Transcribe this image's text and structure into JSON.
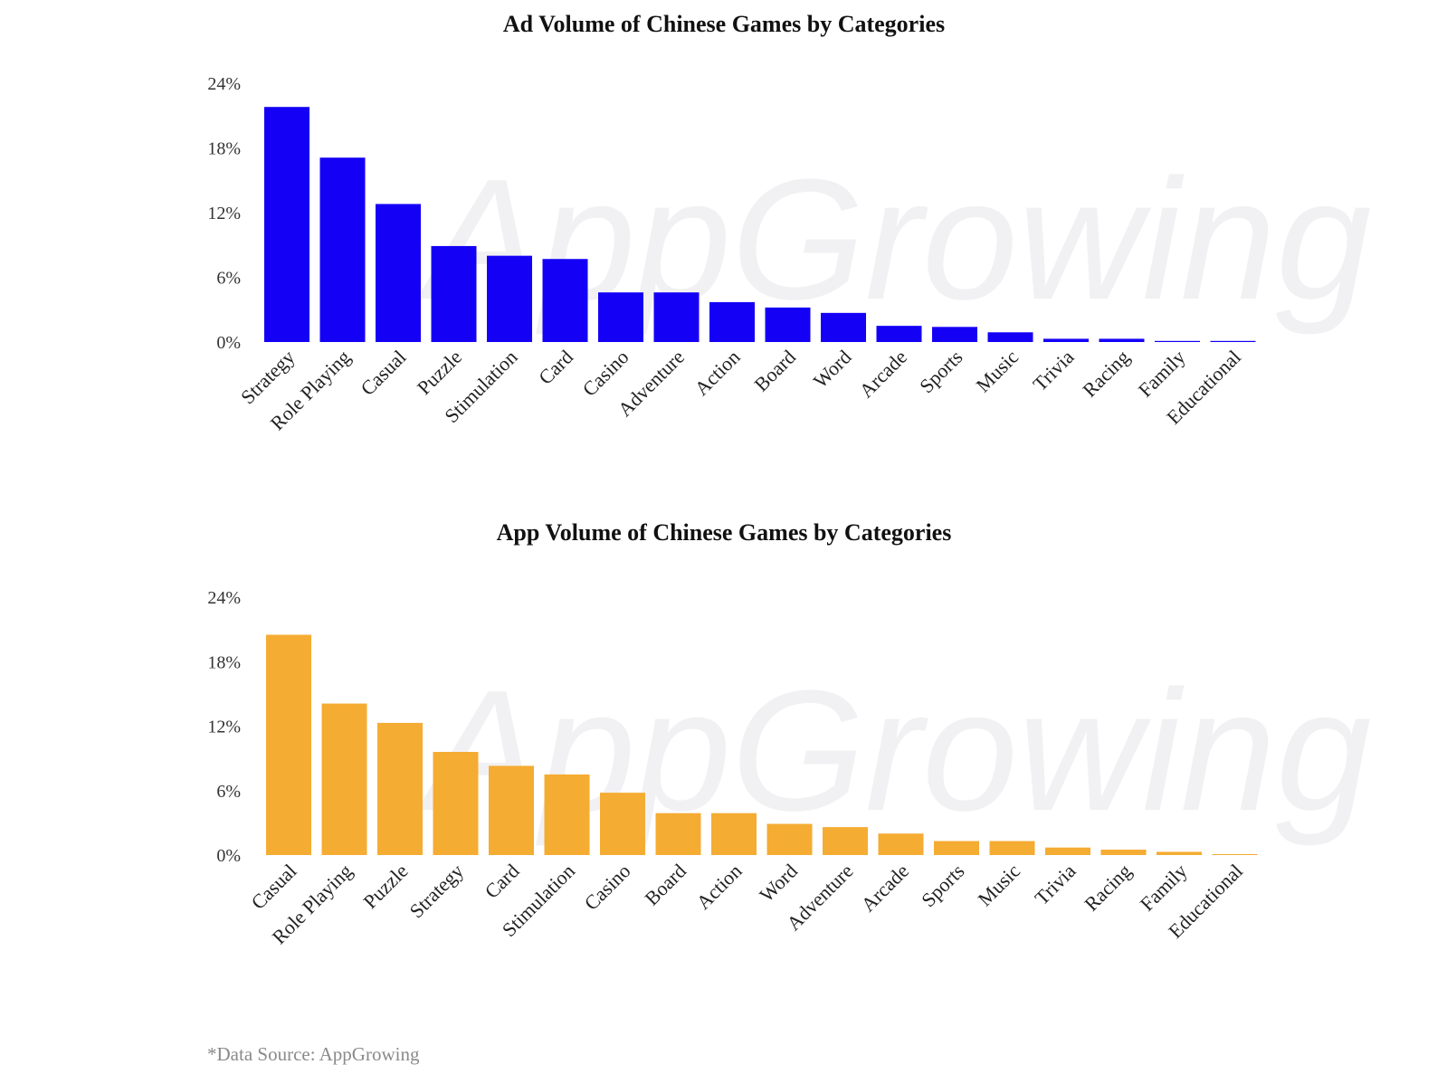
{
  "watermark": "AppGrowing",
  "source_note": "*Data Source: AppGrowing",
  "chart_data": [
    {
      "type": "bar",
      "title": "Ad Volume  of Chinese  Games  by Categories",
      "color": "#1400F5",
      "ylim": [
        0,
        24
      ],
      "yticks": [
        "0%",
        "6%",
        "12%",
        "18%",
        "24%"
      ],
      "ytick_values": [
        0,
        6,
        12,
        18,
        24
      ],
      "grid": false,
      "categories": [
        "Strategy",
        "Role Playing",
        "Casual",
        "Puzzle",
        "Stimulation",
        "Card",
        "Casino",
        "Adventure",
        "Action",
        "Board",
        "Word",
        "Arcade",
        "Sports",
        "Music",
        "Trivia",
        "Racing",
        "Family",
        "Educational"
      ],
      "values": [
        21.8,
        17.1,
        12.8,
        8.9,
        8.0,
        7.7,
        4.6,
        4.6,
        3.7,
        3.2,
        2.7,
        1.5,
        1.4,
        0.9,
        0.3,
        0.3,
        0.1,
        0.1
      ]
    },
    {
      "type": "bar",
      "title": "App  Volume  of Chinese  Games  by Categories",
      "color": "#F5AC33",
      "ylim": [
        0,
        24
      ],
      "yticks": [
        "0%",
        "6%",
        "12%",
        "18%",
        "24%"
      ],
      "ytick_values": [
        0,
        6,
        12,
        18,
        24
      ],
      "grid": false,
      "categories": [
        "Casual",
        "Role Playing",
        "Puzzle",
        "Strategy",
        "Card",
        "Stimulation",
        "Casino",
        "Board",
        "Action",
        "Word",
        "Adventure",
        "Arcade",
        "Sports",
        "Music",
        "Trivia",
        "Racing",
        "Family",
        "Educational"
      ],
      "values": [
        20.5,
        14.1,
        12.3,
        9.6,
        8.3,
        7.5,
        5.8,
        3.9,
        3.9,
        2.9,
        2.6,
        2.0,
        1.3,
        1.3,
        0.7,
        0.5,
        0.3,
        0.0
      ]
    }
  ]
}
